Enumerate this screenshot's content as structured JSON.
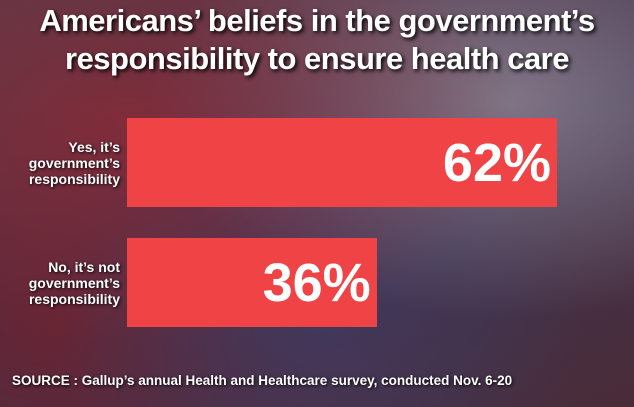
{
  "chart_data": {
    "type": "bar",
    "orientation": "horizontal",
    "title": "Americans’ beliefs in the government’s responsibility to ensure health care",
    "categories": [
      "Yes, it’s government’s responsibility",
      "No, it’s not government’s responsibility"
    ],
    "values": [
      62,
      36
    ],
    "value_labels": [
      "62%",
      "36%"
    ],
    "color": "#f04346",
    "source": "SOURCE : Gallup’s annual Health and Healthcare survey, conducted Nov. 6-20"
  }
}
